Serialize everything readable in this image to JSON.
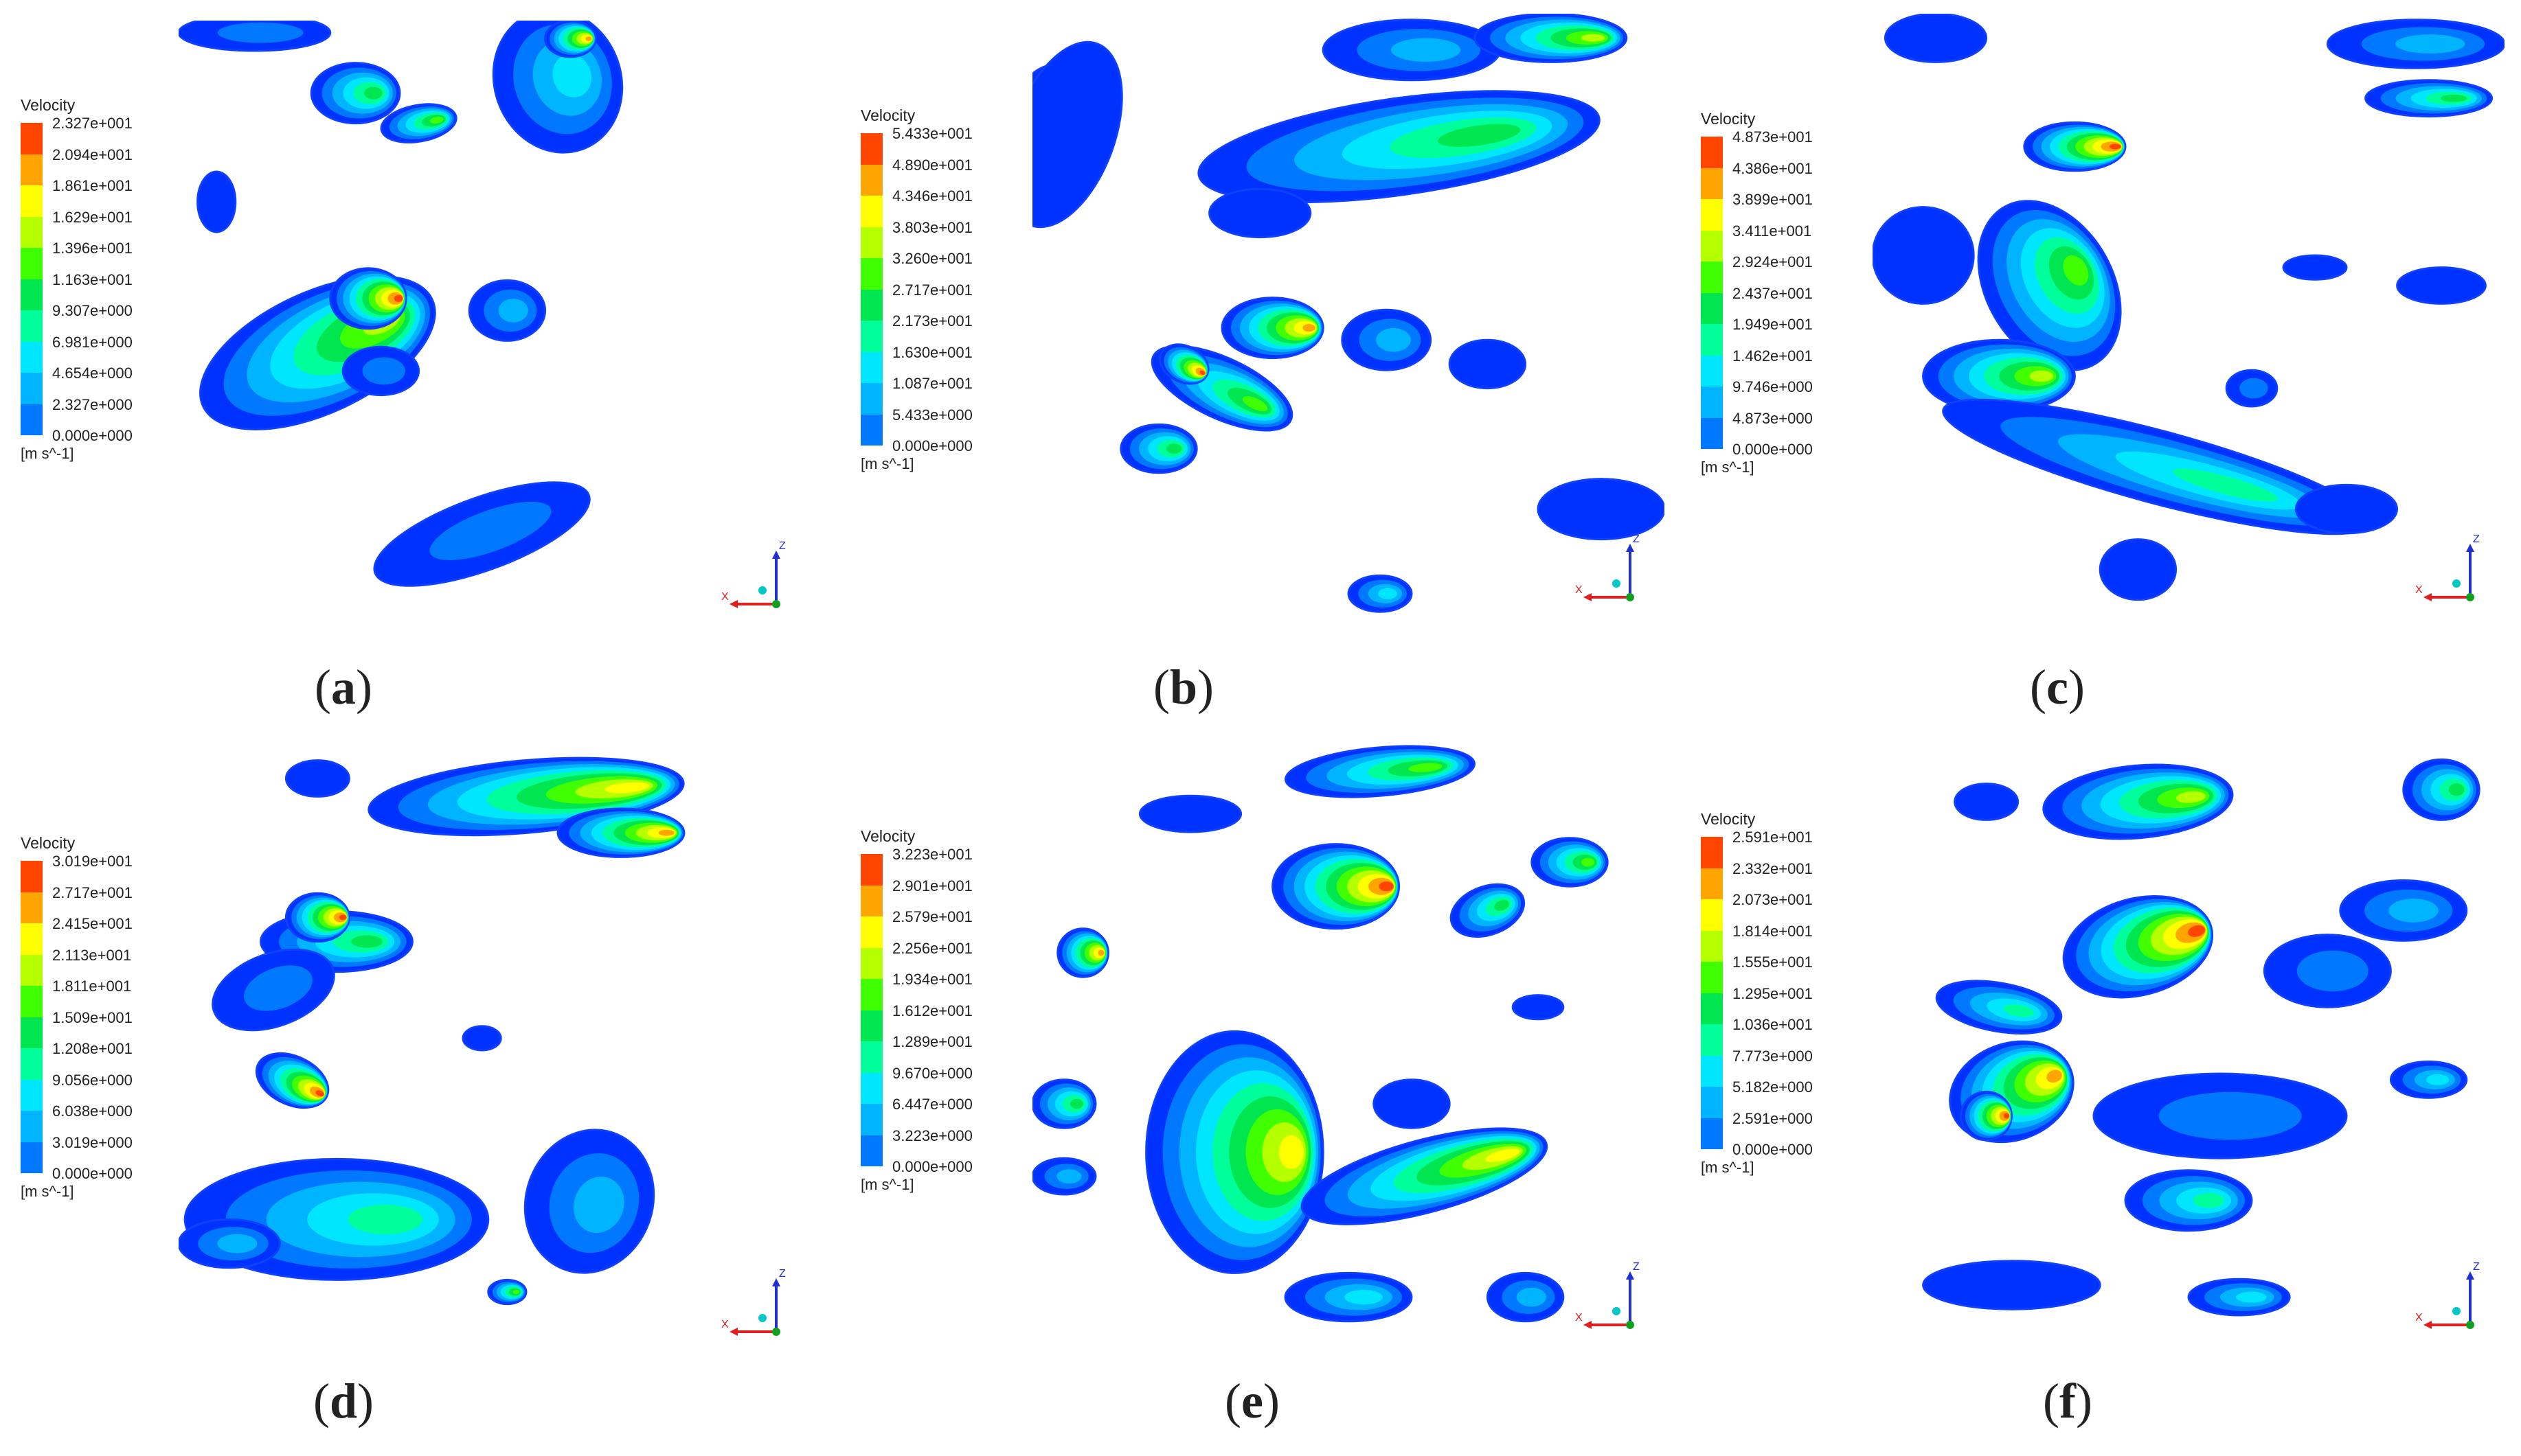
{
  "colors": {
    "scale": [
      "#0032ff",
      "#0078ff",
      "#00b4ff",
      "#00e6ff",
      "#00ff9a",
      "#00e650",
      "#40ff00",
      "#b4ff00",
      "#ffff00",
      "#ffa500",
      "#ff4500"
    ],
    "axis_red": "#e02020",
    "axis_blue": "#2030d0",
    "axis_green": "#10a020",
    "origin_cyan": "#00c8c8"
  },
  "panels": [
    {
      "caption": "a",
      "legend_title": "Velocity",
      "unit": "[m s^-1]",
      "labels": [
        "2.327e+001",
        "2.094e+001",
        "1.861e+001",
        "1.629e+001",
        "1.396e+001",
        "1.163e+001",
        "9.307e+000",
        "6.981e+000",
        "4.654e+000",
        "2.327e+000",
        "0.000e+000"
      ]
    },
    {
      "caption": "b",
      "legend_title": "Velocity",
      "unit": "[m s^-1]",
      "labels": [
        "5.433e+001",
        "4.890e+001",
        "4.346e+001",
        "3.803e+001",
        "3.260e+001",
        "2.717e+001",
        "2.173e+001",
        "1.630e+001",
        "1.087e+001",
        "5.433e+000",
        "0.000e+000"
      ]
    },
    {
      "caption": "c",
      "legend_title": "Velocity",
      "unit": "[m s^-1]",
      "labels": [
        "4.873e+001",
        "4.386e+001",
        "3.899e+001",
        "3.411e+001",
        "2.924e+001",
        "2.437e+001",
        "1.949e+001",
        "1.462e+001",
        "9.746e+000",
        "4.873e+000",
        "0.000e+000"
      ]
    },
    {
      "caption": "d",
      "legend_title": "Velocity",
      "unit": "[m s^-1]",
      "labels": [
        "3.019e+001",
        "2.717e+001",
        "2.415e+001",
        "2.113e+001",
        "1.811e+001",
        "1.509e+001",
        "1.208e+001",
        "9.056e+000",
        "6.038e+000",
        "3.019e+000",
        "0.000e+000"
      ]
    },
    {
      "caption": "e",
      "legend_title": "Velocity",
      "unit": "[m s^-1]",
      "labels": [
        "3.223e+001",
        "2.901e+001",
        "2.579e+001",
        "2.256e+001",
        "1.934e+001",
        "1.612e+001",
        "1.289e+001",
        "9.670e+000",
        "6.447e+000",
        "3.223e+000",
        "0.000e+000"
      ]
    },
    {
      "caption": "f",
      "legend_title": "Velocity",
      "unit": "[m s^-1]",
      "labels": [
        "2.591e+001",
        "2.332e+001",
        "2.073e+001",
        "1.814e+001",
        "1.555e+001",
        "1.295e+001",
        "1.036e+001",
        "7.773e+000",
        "5.182e+000",
        "2.591e+000",
        "0.000e+000"
      ]
    }
  ],
  "axis_labels": {
    "x": "X",
    "z": "Z"
  }
}
